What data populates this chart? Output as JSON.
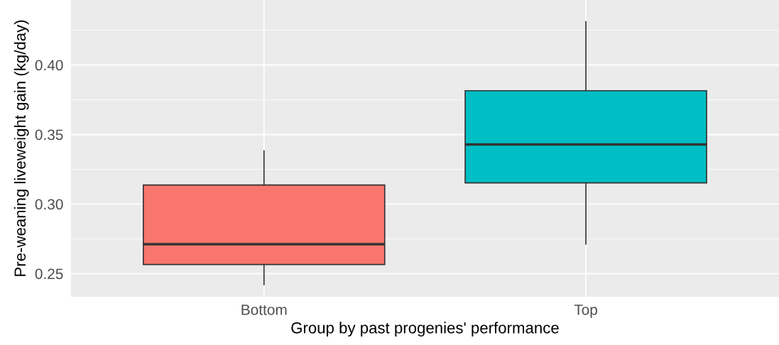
{
  "chart_data": {
    "type": "box",
    "xlabel": "Group by past progenies' performance",
    "ylabel": "Pre-weaning liveweight gain (kg/day)",
    "categories": [
      "Bottom",
      "Top"
    ],
    "colors": [
      "#f8766d",
      "#00bfc4"
    ],
    "boxes": [
      {
        "low": 0.242,
        "q1": 0.2565,
        "median": 0.2711,
        "q3": 0.3137,
        "high": 0.3383
      },
      {
        "low": 0.2711,
        "q1": 0.3152,
        "median": 0.3428,
        "q3": 0.3815,
        "high": 0.4312
      }
    ],
    "ylim": [
      0.2334,
      0.4467
    ],
    "yticks": [
      {
        "value": 0.25,
        "label": "0.25"
      },
      {
        "value": 0.3,
        "label": "0.30"
      },
      {
        "value": 0.35,
        "label": "0.35"
      },
      {
        "value": 0.4,
        "label": "0.40"
      }
    ],
    "grid": true
  }
}
